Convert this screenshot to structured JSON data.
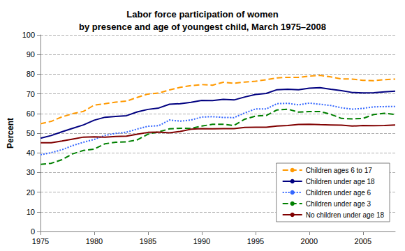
{
  "chart_data": {
    "type": "line",
    "title": "Labor force participation of women\nby presence and age of youngest child, March 1975–2008",
    "y_label": "Percent",
    "x": [
      1975,
      1976,
      1977,
      1978,
      1979,
      1980,
      1981,
      1982,
      1983,
      1984,
      1985,
      1986,
      1987,
      1988,
      1989,
      1990,
      1991,
      1992,
      1993,
      1994,
      1995,
      1996,
      1997,
      1998,
      1999,
      2000,
      2001,
      2002,
      2003,
      2004,
      2005,
      2006,
      2007,
      2008
    ],
    "series": [
      {
        "name": "Children ages 6 to 17",
        "color": "#ff9900",
        "line_style": "dashed",
        "marker": "none",
        "values": [
          54.8,
          56.0,
          58.3,
          59.9,
          61.1,
          64.3,
          65.0,
          65.8,
          66.3,
          68.2,
          69.9,
          70.4,
          72.0,
          73.3,
          74.2,
          74.7,
          74.4,
          75.9,
          75.4,
          76.0,
          76.4,
          77.2,
          78.1,
          78.4,
          78.4,
          79.0,
          79.4,
          78.6,
          77.6,
          77.5,
          76.9,
          76.7,
          77.2,
          77.5
        ]
      },
      {
        "name": "Children under age 18",
        "color": "#000080",
        "line_style": "solid",
        "marker": "none",
        "values": [
          47.4,
          48.8,
          50.7,
          52.5,
          54.2,
          56.6,
          58.1,
          58.5,
          58.9,
          60.8,
          62.1,
          62.8,
          64.7,
          65.0,
          65.7,
          66.7,
          66.6,
          67.2,
          66.9,
          68.4,
          69.7,
          70.2,
          72.1,
          72.3,
          72.1,
          72.9,
          73.1,
          72.3,
          71.6,
          70.7,
          70.5,
          70.6,
          71.0,
          71.4
        ]
      },
      {
        "name": "Children under age 6",
        "color": "#3366ff",
        "line_style": "dotted",
        "marker": "none",
        "values": [
          39.0,
          40.1,
          41.6,
          43.7,
          45.4,
          46.8,
          48.9,
          49.9,
          50.5,
          52.1,
          53.5,
          53.8,
          56.7,
          56.1,
          56.7,
          58.2,
          58.4,
          58.0,
          57.9,
          60.3,
          62.3,
          62.3,
          65.0,
          65.2,
          64.4,
          65.3,
          64.7,
          64.1,
          62.9,
          62.2,
          62.6,
          63.4,
          63.5,
          63.6
        ]
      },
      {
        "name": "Children under age 3",
        "color": "#008000",
        "line_style": "dashed",
        "marker": "none",
        "values": [
          34.1,
          34.7,
          36.5,
          39.5,
          41.2,
          41.9,
          44.6,
          45.4,
          45.6,
          46.6,
          49.5,
          50.7,
          52.2,
          52.5,
          52.4,
          53.6,
          54.5,
          54.5,
          53.9,
          57.1,
          58.7,
          59.0,
          61.8,
          62.2,
          60.7,
          61.0,
          61.0,
          59.6,
          57.5,
          57.3,
          57.5,
          59.5,
          60.1,
          59.5
        ]
      },
      {
        "name": "No children under age 18",
        "color": "#800000",
        "line_style": "solid",
        "marker": "none",
        "values": [
          45.1,
          45.1,
          46.0,
          47.0,
          48.0,
          48.1,
          48.0,
          48.3,
          48.5,
          49.5,
          50.4,
          50.5,
          50.2,
          50.9,
          52.0,
          52.3,
          52.2,
          52.3,
          52.3,
          52.9,
          53.0,
          53.0,
          53.6,
          53.9,
          54.4,
          54.5,
          54.3,
          54.2,
          54.1,
          53.6,
          53.9,
          53.8,
          53.9,
          54.2
        ]
      }
    ],
    "xlim": [
      1975,
      2008
    ],
    "xticks": [
      1975,
      1980,
      1985,
      1990,
      1995,
      2000,
      2005
    ],
    "ylim": [
      0,
      100
    ],
    "yticks": [
      0,
      10,
      20,
      30,
      40,
      50,
      60,
      70,
      80,
      90,
      100
    ],
    "grid": true,
    "legend": "lower right"
  }
}
